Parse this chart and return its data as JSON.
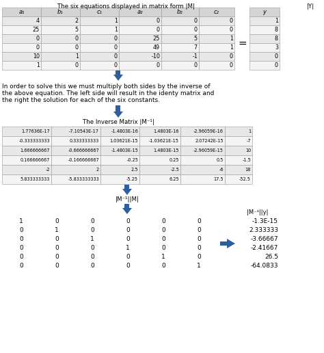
{
  "title1": "The six equations displayed in matrix form |M|",
  "title_Y": "|Y|",
  "M_headers": [
    "a₁",
    "b₁",
    "c₁",
    "a₂",
    "b₂",
    "c₂"
  ],
  "M_data": [
    [
      "4",
      "2",
      "1",
      "0",
      "0",
      "0"
    ],
    [
      "25",
      "5",
      "1",
      "0",
      "0",
      "0"
    ],
    [
      "0",
      "0",
      "0",
      "25",
      "5",
      "1"
    ],
    [
      "0",
      "0",
      "0",
      "49",
      "7",
      "1"
    ],
    [
      "10",
      "1",
      "0",
      "-10",
      "-1",
      "0"
    ],
    [
      "1",
      "0",
      "0",
      "0",
      "0",
      "0"
    ]
  ],
  "Y_header": "y",
  "Y_data": [
    "1",
    "8",
    "8",
    "3",
    "0",
    "0"
  ],
  "paragraph_lines": [
    "In order to solve this we must multiply both sides by the inverse of",
    "the above equation. The left side will result in the identy matrix and",
    "the right the solution for each of the six constants."
  ],
  "inv_title": "The Inverse Matrix |M⁻¹|",
  "inv_data": [
    [
      "1.77636E-17",
      "-7.10543E-17",
      "-1.4803E-16",
      "1.4803E-16",
      "-2.96059E-16",
      "1"
    ],
    [
      "-0.333333333",
      "0.333333333",
      "1.03621E-15",
      "-1.03621E-15",
      "2.07242E-15",
      "-7"
    ],
    [
      "1.666666667",
      "-0.666666667",
      "-1.4803E-15",
      "1.4803E-15",
      "-2.96059E-15",
      "10"
    ],
    [
      "0.166666667",
      "-0.166666667",
      "-0.25",
      "0.25",
      "0.5",
      "-1.5"
    ],
    [
      "-2",
      "2",
      "2.5",
      "-2.5",
      "-6",
      "18"
    ],
    [
      "5.833333333",
      "-5.833333333",
      "-5.25",
      "6.25",
      "17.5",
      "-52.5"
    ]
  ],
  "inv_mult_label": "|M⁻¹||M|",
  "identity_data": [
    [
      "1",
      "0",
      "0",
      "0",
      "0",
      "0"
    ],
    [
      "0",
      "1",
      "0",
      "0",
      "0",
      "0"
    ],
    [
      "0",
      "0",
      "1",
      "0",
      "0",
      "0"
    ],
    [
      "0",
      "0",
      "0",
      "1",
      "0",
      "0"
    ],
    [
      "0",
      "0",
      "0",
      "0",
      "1",
      "0"
    ],
    [
      "0",
      "0",
      "0",
      "0",
      "0",
      "1"
    ]
  ],
  "inv_Y_title": "|M⁻¹||y|",
  "inv_Y_data": [
    "-1.3E-15",
    "2.333333",
    "-3.66667",
    "-2.41667",
    "26.5",
    "-64.0833"
  ],
  "table_header_bg": "#d4d4d4",
  "table_row_even": "#e8e8e8",
  "table_row_odd": "#f4f4f4",
  "arrow_color": "#2d5fa0",
  "text_color": "#000000",
  "edge_color": "#999999"
}
